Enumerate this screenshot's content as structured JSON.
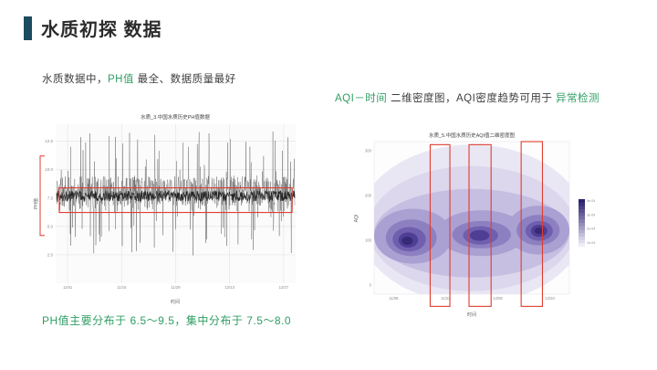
{
  "slide": {
    "title": "水质初探 数据",
    "captions": {
      "left": [
        {
          "text": "水质数据中，"
        },
        {
          "text": "PH值",
          "green": true
        },
        {
          "text": " 最全、数据质量最好"
        }
      ],
      "right": [
        {
          "text": "AQI－时间",
          "green": true
        },
        {
          "text": " 二维密度图，AQI密度趋势可用于 "
        },
        {
          "text": "异常检测",
          "green": true
        }
      ],
      "bottom": [
        {
          "text": "PH值主要分布于 6.5～9.5，集中分布于 7.5～8.0",
          "green": true
        }
      ]
    },
    "colors": {
      "accent_bar": "#1c4b5f",
      "green": "#2f9e63",
      "red": "#e03b2e",
      "text": "#3f3f3f",
      "title": "#2b2b2b"
    }
  },
  "chart_data": [
    {
      "type": "line",
      "title": "水质_3.中国水质历史PH值数据",
      "xlabel": "时间",
      "ylabel": "PH值",
      "ylim": [
        0,
        14
      ],
      "y_ticks": [
        2.5,
        5.0,
        7.5,
        10.0,
        12.5
      ],
      "x_ticks": [
        "11/01",
        "11/15",
        "11/29",
        "12/13",
        "12/27"
      ],
      "distribution_note": {
        "overall_range": [
          6.5,
          9.5
        ],
        "dense_range": [
          7.5,
          8.0
        ]
      },
      "style": {
        "line_color": "#3f3f3f",
        "dense_color": "#161616",
        "panel": "#fbfbfb",
        "grid": "#e6e6e6"
      },
      "render": {
        "seed": 11,
        "n_points": 820,
        "n_dense": 620
      },
      "annotations": {
        "highlight_box": {
          "x0": 0.015,
          "y0": 0.4,
          "x1": 0.985,
          "y1": 0.555
        },
        "bracket": {
          "y0": 0.2,
          "y1": 0.7
        }
      }
    },
    {
      "type": "heatmap",
      "title": "水质_5.中国水质历史AQI值二维密度图",
      "xlabel": "时间",
      "ylabel": "AQI",
      "x_ticks": [
        "11/08",
        "11/22",
        "12/06",
        "12/20"
      ],
      "y_ticks": [
        "0",
        "100",
        "200",
        "300"
      ],
      "legend_ticks": [
        "4e-04",
        "3e-04",
        "2e-04",
        "1e-04"
      ],
      "style": {
        "panel": "#fdfdfe",
        "panel_border": "#e8e8ee",
        "legend_dark": "#2b2170",
        "legend_light": "#efecf7"
      },
      "density_layers": [
        {
          "fill": "#eae7f4",
          "ellipses": [
            [
              0.5,
              0.54,
              0.58,
              0.52
            ]
          ]
        },
        {
          "fill": "#dcd7ec",
          "ellipses": [
            [
              0.5,
              0.57,
              0.53,
              0.41
            ]
          ]
        },
        {
          "fill": "#c6bfe2",
          "ellipses": [
            [
              0.5,
              0.6,
              0.5,
              0.29
            ]
          ]
        },
        {
          "fill": "#aaa0d2",
          "ellipses": [
            [
              0.2,
              0.62,
              0.2,
              0.18
            ],
            [
              0.55,
              0.6,
              0.23,
              0.15
            ],
            [
              0.84,
              0.58,
              0.16,
              0.16
            ]
          ]
        },
        {
          "fill": "#8d80c1",
          "ellipses": [
            [
              0.19,
              0.63,
              0.13,
              0.12
            ],
            [
              0.55,
              0.61,
              0.15,
              0.09
            ],
            [
              0.84,
              0.58,
              0.11,
              0.1
            ]
          ]
        },
        {
          "fill": "#6f5fae",
          "ellipses": [
            [
              0.18,
              0.64,
              0.085,
              0.08
            ],
            [
              0.545,
              0.615,
              0.09,
              0.06
            ],
            [
              0.845,
              0.585,
              0.07,
              0.065
            ]
          ]
        },
        {
          "fill": "#4e3e94",
          "ellipses": [
            [
              0.175,
              0.645,
              0.05,
              0.05
            ],
            [
              0.54,
              0.615,
              0.05,
              0.035
            ],
            [
              0.845,
              0.585,
              0.042,
              0.04
            ]
          ]
        },
        {
          "fill": "#352a75",
          "ellipses": [
            [
              0.17,
              0.65,
              0.028,
              0.027
            ],
            [
              0.845,
              0.585,
              0.023,
              0.022
            ]
          ]
        }
      ],
      "annotations": {
        "boxes": [
          [
            0.287,
            0.02,
            0.101,
            1.06
          ],
          [
            0.486,
            0.02,
            0.113,
            1.06
          ],
          [
            0.753,
            0.0,
            0.109,
            1.08
          ]
        ]
      }
    }
  ]
}
